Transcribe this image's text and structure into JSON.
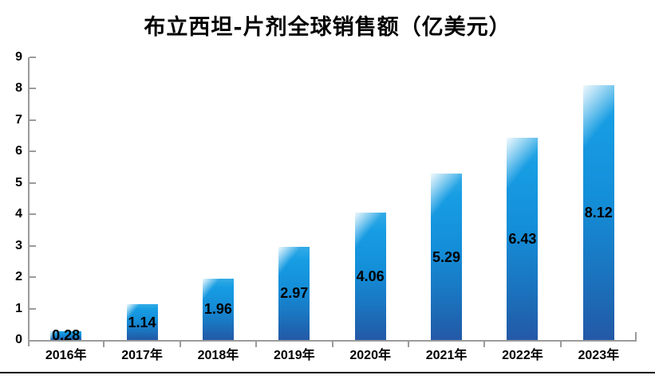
{
  "chart_data": {
    "type": "bar",
    "title": "布立西坦-片剂全球销售额（亿美元）",
    "categories": [
      "2016年",
      "2017年",
      "2018年",
      "2019年",
      "2020年",
      "2021年",
      "2022年",
      "2023年"
    ],
    "values": [
      0.28,
      1.14,
      1.96,
      2.97,
      4.06,
      5.29,
      6.43,
      8.12
    ],
    "value_labels": [
      "0.28",
      "1.14",
      "1.96",
      "2.97",
      "4.06",
      "5.29",
      "6.43",
      "8.12"
    ],
    "xlabel": "",
    "ylabel": "",
    "ylim": [
      0,
      9
    ],
    "y_ticks": [
      0,
      1,
      2,
      3,
      4,
      5,
      6,
      7,
      8,
      9
    ],
    "grid": false,
    "legend": false,
    "data_label_position": "center",
    "colors": {
      "bar_gradient_top": "#33abe6",
      "bar_gradient_mid": "#148ed8",
      "bar_gradient_bottom": "#2459a7",
      "bar_highlight": "#ffffff",
      "axis_line": "#9b9b9b",
      "text": "#000000",
      "bottom_rule": "#000000",
      "background": "#ffffff"
    }
  }
}
